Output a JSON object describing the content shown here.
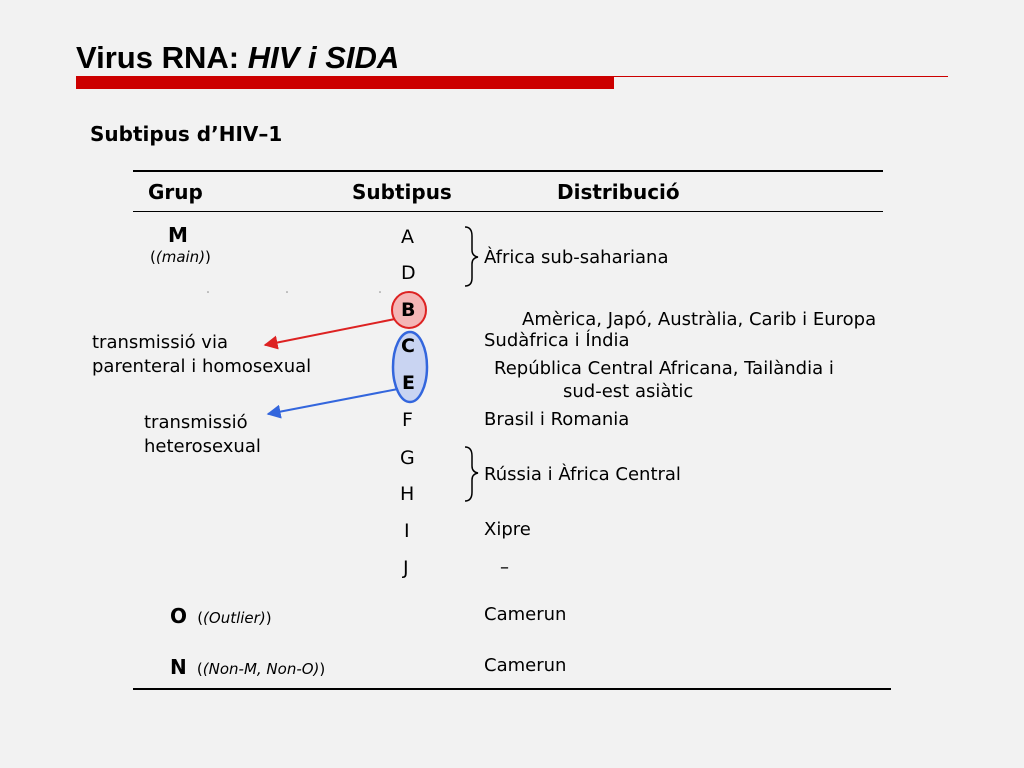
{
  "title": {
    "main": "Virus RNA: ",
    "italic": "HIV i SIDA"
  },
  "subtitle": "Subtipus d’HIV–1",
  "table": {
    "headers": [
      "Grup",
      "Subtipus",
      "Distribució"
    ],
    "groups": {
      "m": {
        "code": "M",
        "note": "(main)"
      },
      "o": {
        "code": "O",
        "note": "(Outlier)"
      },
      "n": {
        "code": "N",
        "note": "(Non-M, Non-O)"
      }
    },
    "subtypes": [
      "A",
      "D",
      "B",
      "C",
      "E",
      "F",
      "G",
      "H",
      "I",
      "J"
    ],
    "distribution": {
      "ad": "Àfrica sub-sahariana",
      "b": "Amèrica, Japó, Austràlia, Carib i Europa",
      "c": "Sudàfrica i Índia",
      "e1": "República Central Africana, Tailàndia i",
      "e2": "sud-est asiàtic",
      "f": "Brasil i Romania",
      "gh": "Rússia i Àfrica Central",
      "i": "Xipre",
      "j": "–",
      "o": "Camerun",
      "n": "Camerun"
    }
  },
  "annotations": {
    "parenteral_1": "transmissió via",
    "parenteral_2": "parenteral i homosexual",
    "hetero_1": "transmissió",
    "hetero_2": "heterosexual"
  },
  "colors": {
    "accent": "#cc0000",
    "red_arrow": "#dd2222",
    "blue_arrow": "#3366dd",
    "b_fill": "#f4b6b6",
    "ce_fill": "#c9d4f2"
  }
}
